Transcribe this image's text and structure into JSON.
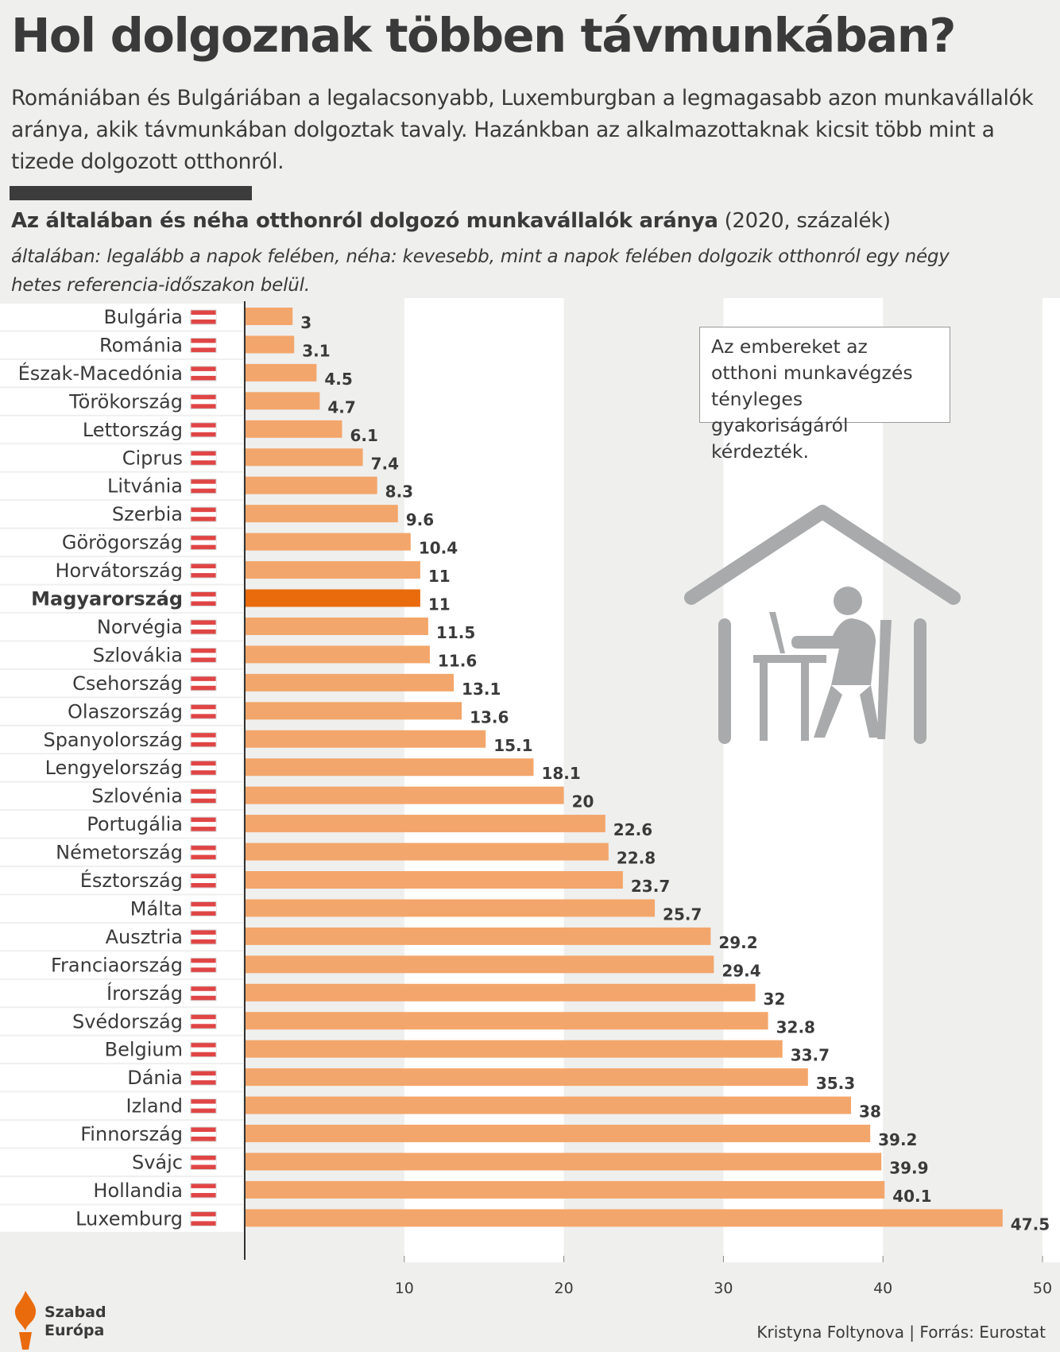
{
  "header": {
    "title": "Hol dolgoznak többen távmunkában?",
    "subtitle": "Romániában és Bulgáriában a legalacsonyabb, Luxemburgban a legmagasabb azon munkavállalók aránya, akik távmunkában dolgoztak tavaly. Hazánkban az alkalmazottaknak kicsit több mint a tizede dolgozott otthonról.",
    "chart_title_bold": "Az általában és néha otthonról dolgozó munkavállalók aránya",
    "chart_title_rest": " (2020, százalék)",
    "chart_note": "általában: legalább a napok felében, néha: kevesebb, mint a napok felében dolgozik otthonról egy négy hetes referencia-időszakon belül."
  },
  "annotation": "Az embereket az otthoni munkavégzés tényleges gyakoriságáról kérdezték.",
  "footer": {
    "logo_line1": "Szabad",
    "logo_line2": "Európa",
    "credit": "Kristyna Foltynova | Forrás: Eurostat"
  },
  "colors": {
    "bar": "#f3a66b",
    "highlight": "#e96b0c",
    "axis": "#333333",
    "icon": "#a9aaab"
  },
  "icons": {
    "house": "home-office-icon",
    "logo": "szabad-europa-torch-logo"
  },
  "chart_data": {
    "type": "bar",
    "orientation": "horizontal",
    "highlight": "Magyarország",
    "categories": [
      "Bulgária",
      "Románia",
      "Észak-Macedónia",
      "Törökország",
      "Lettország",
      "Ciprus",
      "Litvánia",
      "Szerbia",
      "Görögország",
      "Horvátország",
      "Magyarország",
      "Norvégia",
      "Szlovákia",
      "Csehország",
      "Olaszország",
      "Spanyolország",
      "Lengyelország",
      "Szlovénia",
      "Portugália",
      "Németország",
      "Észtország",
      "Málta",
      "Ausztria",
      "Franciaország",
      "Írország",
      "Svédország",
      "Belgium",
      "Dánia",
      "Izland",
      "Finnország",
      "Svájc",
      "Hollandia",
      "Luxemburg"
    ],
    "values": [
      3,
      3.1,
      4.5,
      4.7,
      6.1,
      7.4,
      8.3,
      9.6,
      10.4,
      11,
      11,
      11.5,
      11.6,
      13.1,
      13.6,
      15.1,
      18.1,
      20,
      22.6,
      22.8,
      23.7,
      25.7,
      29.2,
      29.4,
      32,
      32.8,
      33.7,
      35.3,
      38,
      39.2,
      39.9,
      40.1,
      47.5
    ],
    "value_labels": [
      "3",
      "3.1",
      "4.5",
      "4.7",
      "6.1",
      "7.4",
      "8.3",
      "9.6",
      "10.4",
      "11",
      "11",
      "11.5",
      "11.6",
      "13.1",
      "13.6",
      "15.1",
      "18.1",
      "20",
      "22.6",
      "22.8",
      "23.7",
      "25.7",
      "29.2",
      "29.4",
      "32",
      "32.8",
      "33.7",
      "35.3",
      "38",
      "39.2",
      "39.9",
      "40.1",
      "47.5"
    ],
    "xticks": [
      10,
      20,
      30,
      40,
      50
    ],
    "xlim": [
      0,
      50
    ],
    "grid": "alternating vertical bands"
  }
}
